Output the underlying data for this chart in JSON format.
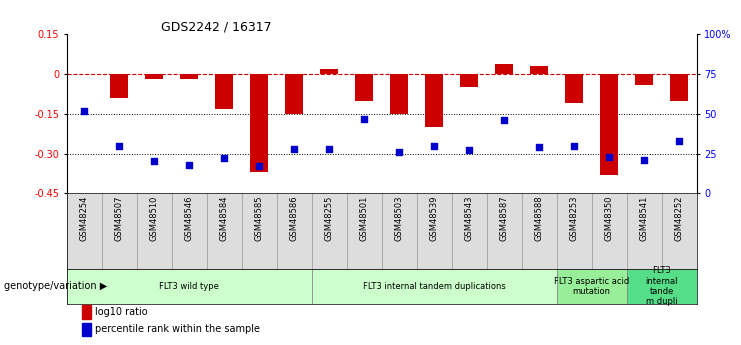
{
  "title": "GDS2242 / 16317",
  "samples": [
    "GSM48254",
    "GSM48507",
    "GSM48510",
    "GSM48546",
    "GSM48584",
    "GSM48585",
    "GSM48586",
    "GSM48255",
    "GSM48501",
    "GSM48503",
    "GSM48539",
    "GSM48543",
    "GSM48587",
    "GSM48588",
    "GSM48253",
    "GSM48350",
    "GSM48541",
    "GSM48252"
  ],
  "log10_ratio": [
    0.0,
    -0.09,
    -0.02,
    -0.02,
    -0.13,
    -0.37,
    -0.15,
    0.02,
    -0.1,
    -0.15,
    -0.2,
    -0.05,
    0.04,
    0.03,
    -0.11,
    -0.38,
    -0.04,
    -0.1
  ],
  "percentile_rank": [
    52,
    30,
    20,
    18,
    22,
    17,
    28,
    28,
    47,
    26,
    30,
    27,
    46,
    29,
    30,
    23,
    21,
    33
  ],
  "groups": [
    {
      "label": "FLT3 wild type",
      "start": 0,
      "end": 7,
      "color": "#ccffcc"
    },
    {
      "label": "FLT3 internal tandem duplications",
      "start": 7,
      "end": 14,
      "color": "#ccffcc"
    },
    {
      "label": "FLT3 aspartic acid\nmutation",
      "start": 14,
      "end": 16,
      "color": "#99ee99"
    },
    {
      "label": "FLT3\ninternal\ntande\nm dupli",
      "start": 16,
      "end": 18,
      "color": "#55dd88"
    }
  ],
  "bar_color": "#cc0000",
  "dot_color": "#0000cc",
  "dashed_line_color": "#cc0000",
  "ylim_left": [
    -0.45,
    0.15
  ],
  "ylim_right": [
    0,
    100
  ],
  "yticks_left": [
    0.15,
    0.0,
    -0.15,
    -0.3,
    -0.45
  ],
  "yticks_right": [
    100,
    75,
    50,
    25,
    0
  ],
  "ytick_labels_left": [
    "0.15",
    "0",
    "-0.15",
    "-0.30",
    "-0.45"
  ],
  "ytick_labels_right": [
    "100%",
    "75",
    "50",
    "25",
    "0"
  ],
  "dotted_lines": [
    -0.15,
    -0.3
  ],
  "genotype_label": "genotype/variation"
}
